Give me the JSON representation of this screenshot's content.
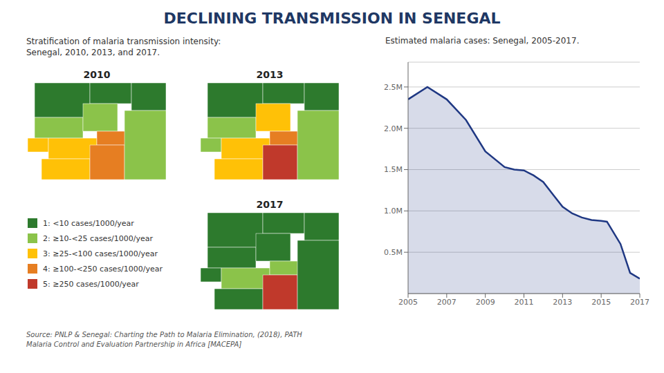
{
  "title": "DECLINING TRANSMISSION IN SENEGAL",
  "annotations": [
    "Source: PNLP & Senegal: Charting the Path to Malaria Elimination, (2018), PATH\nMalaria Control and Evaluation Partnership in Africa [MACEPA]"
  ],
  "chart_data": [
    {
      "type": "map",
      "title": "Stratification of malaria transmission intensity:\nSenegal, 2010, 2013, and 2017.",
      "categories": [
        "1: <10 cases/1000/year",
        "2: ≥10-<25 cases/1000/year",
        "3: ≥25-<100 cases/1000/year",
        "4: ≥100-<250 cases/1000/year",
        "5: ≥250 cases/1000/year"
      ],
      "colors": [
        "#2d7a2d",
        "#8bc34a",
        "#ffc107",
        "#e67e22",
        "#c0392b"
      ],
      "series": [
        {
          "name": "2010",
          "colors": [
            "#2d7a2d",
            "#2d7a2d",
            "#2d7a2d",
            "#8bc34a",
            "#8bc34a",
            "#ffc107",
            "#ffc107",
            "#e67e22",
            "#ffc107",
            "#e67e22",
            "#8bc34a"
          ]
        },
        {
          "name": "2013",
          "colors": [
            "#2d7a2d",
            "#2d7a2d",
            "#2d7a2d",
            "#8bc34a",
            "#ffc107",
            "#8bc34a",
            "#ffc107",
            "#e67e22",
            "#ffc107",
            "#c0392b",
            "#8bc34a"
          ]
        },
        {
          "name": "2017",
          "colors": [
            "#2d7a2d",
            "#2d7a2d",
            "#2d7a2d",
            "#2d7a2d",
            "#2d7a2d",
            "#2d7a2d",
            "#8bc34a",
            "#8bc34a",
            "#2d7a2d",
            "#c0392b",
            "#2d7a2d"
          ]
        }
      ]
    },
    {
      "type": "area",
      "subtitle": "Estimated malaria cases:  Senegal, 2005-2017.",
      "x": [
        2005,
        2006,
        2007,
        2008,
        2009,
        2010,
        2010.5,
        2011,
        2011.5,
        2012,
        2012.5,
        2013,
        2013.5,
        2014,
        2014.5,
        2015,
        2015.3,
        2016,
        2016.5,
        2017
      ],
      "values": [
        2.35,
        2.5,
        2.35,
        2.1,
        1.72,
        1.53,
        1.5,
        1.49,
        1.43,
        1.35,
        1.2,
        1.05,
        0.97,
        0.92,
        0.89,
        0.88,
        0.87,
        0.6,
        0.25,
        0.18
      ],
      "color": "#1F3883",
      "xlim": [
        2005,
        2017
      ],
      "xticks": [
        2005,
        2007,
        2009,
        2011,
        2013,
        2015,
        2017
      ],
      "ylim": [
        0,
        2.8
      ],
      "yticks": [
        {
          "value": 0.5,
          "label": "0.5M"
        },
        {
          "value": 1.0,
          "label": "1.0M"
        },
        {
          "value": 1.5,
          "label": "1.5M"
        },
        {
          "value": 2.0,
          "label": "2.0M"
        },
        {
          "value": 2.5,
          "label": "2.5M"
        }
      ],
      "grid": true
    }
  ]
}
